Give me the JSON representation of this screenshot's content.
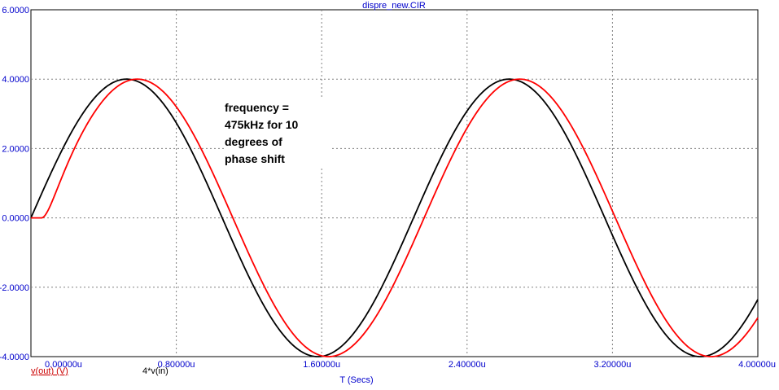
{
  "chart_data": {
    "type": "line",
    "title": "dispre_new.CIR",
    "xlabel": "T (Secs)",
    "ylabel": "",
    "xlim": [
      0,
      4.0
    ],
    "ylim": [
      -4.0,
      6.0
    ],
    "x_unit": "u",
    "xticks": [
      "0.00000u",
      "0.80000u",
      "1.60000u",
      "2.40000u",
      "3.20000u",
      "4.00000u"
    ],
    "yticks": [
      "-4.0000",
      "-2.0000",
      "0.0000",
      "2.0000",
      "4.0000",
      "6.0000"
    ],
    "grid": true,
    "series": [
      {
        "name": "v(out) (V)",
        "color": "#ff0000",
        "amplitude": 4.0,
        "frequency_mhz": 0.475,
        "phase_delay_deg": 10,
        "x": [
          0.0,
          0.05,
          0.1,
          0.2,
          0.3,
          0.4,
          0.5,
          0.6,
          0.7,
          0.8,
          0.9,
          1.0,
          1.1,
          1.2,
          1.3,
          1.4,
          1.5,
          1.6,
          1.7,
          1.8,
          1.9,
          2.0,
          2.1,
          2.2,
          2.3,
          2.4,
          2.5,
          2.6,
          2.7,
          2.8,
          2.9,
          3.0,
          3.1,
          3.2,
          3.3,
          3.4,
          3.5,
          3.6,
          3.7,
          3.8,
          3.9,
          4.0
        ],
        "y": [
          0.0,
          0.1,
          0.45,
          1.31,
          2.3,
          3.1,
          3.7,
          3.98,
          3.92,
          3.5,
          2.76,
          1.77,
          0.62,
          -0.58,
          -1.72,
          -2.72,
          -3.47,
          -3.92,
          -3.99,
          -3.69,
          -3.04,
          -2.12,
          -1.02,
          0.18,
          1.35,
          2.42,
          3.26,
          3.82,
          4.0,
          3.81,
          3.25,
          2.4,
          1.33,
          0.15,
          -1.04,
          -2.14,
          -3.06,
          -3.7,
          -3.99,
          -3.91,
          -3.45,
          -2.67
        ]
      },
      {
        "name": "4*v(in)",
        "color": "#000000",
        "amplitude": 4.0,
        "frequency_mhz": 0.475,
        "x": [
          0.0,
          0.1,
          0.2,
          0.3,
          0.4,
          0.5,
          0.6,
          0.7,
          0.8,
          0.9,
          1.0,
          1.1,
          1.2,
          1.3,
          1.4,
          1.5,
          1.6,
          1.7,
          1.8,
          1.9,
          2.0,
          2.1,
          2.2,
          2.3,
          2.4,
          2.5,
          2.6,
          2.7,
          2.8,
          2.9,
          3.0,
          3.1,
          3.2,
          3.3,
          3.4,
          3.5,
          3.6,
          3.7,
          3.8,
          3.9,
          4.0
        ],
        "y": [
          0.0,
          1.16,
          2.22,
          3.11,
          3.72,
          3.99,
          3.9,
          3.43,
          2.63,
          1.61,
          0.45,
          -0.73,
          -1.85,
          -2.82,
          -3.53,
          -3.94,
          -3.98,
          -3.64,
          -2.96,
          -2.01,
          -0.9,
          0.3,
          1.45,
          2.5,
          3.32,
          3.85,
          4.0,
          3.77,
          3.18,
          2.29,
          1.2,
          0.02,
          -1.16,
          -2.25,
          -3.13,
          -3.73,
          -3.99,
          -3.88,
          -3.4,
          -2.6,
          -1.58
        ]
      }
    ],
    "annotation": [
      "frequency =",
      "475kHz for 10",
      "degrees of",
      "phase shift"
    ]
  }
}
